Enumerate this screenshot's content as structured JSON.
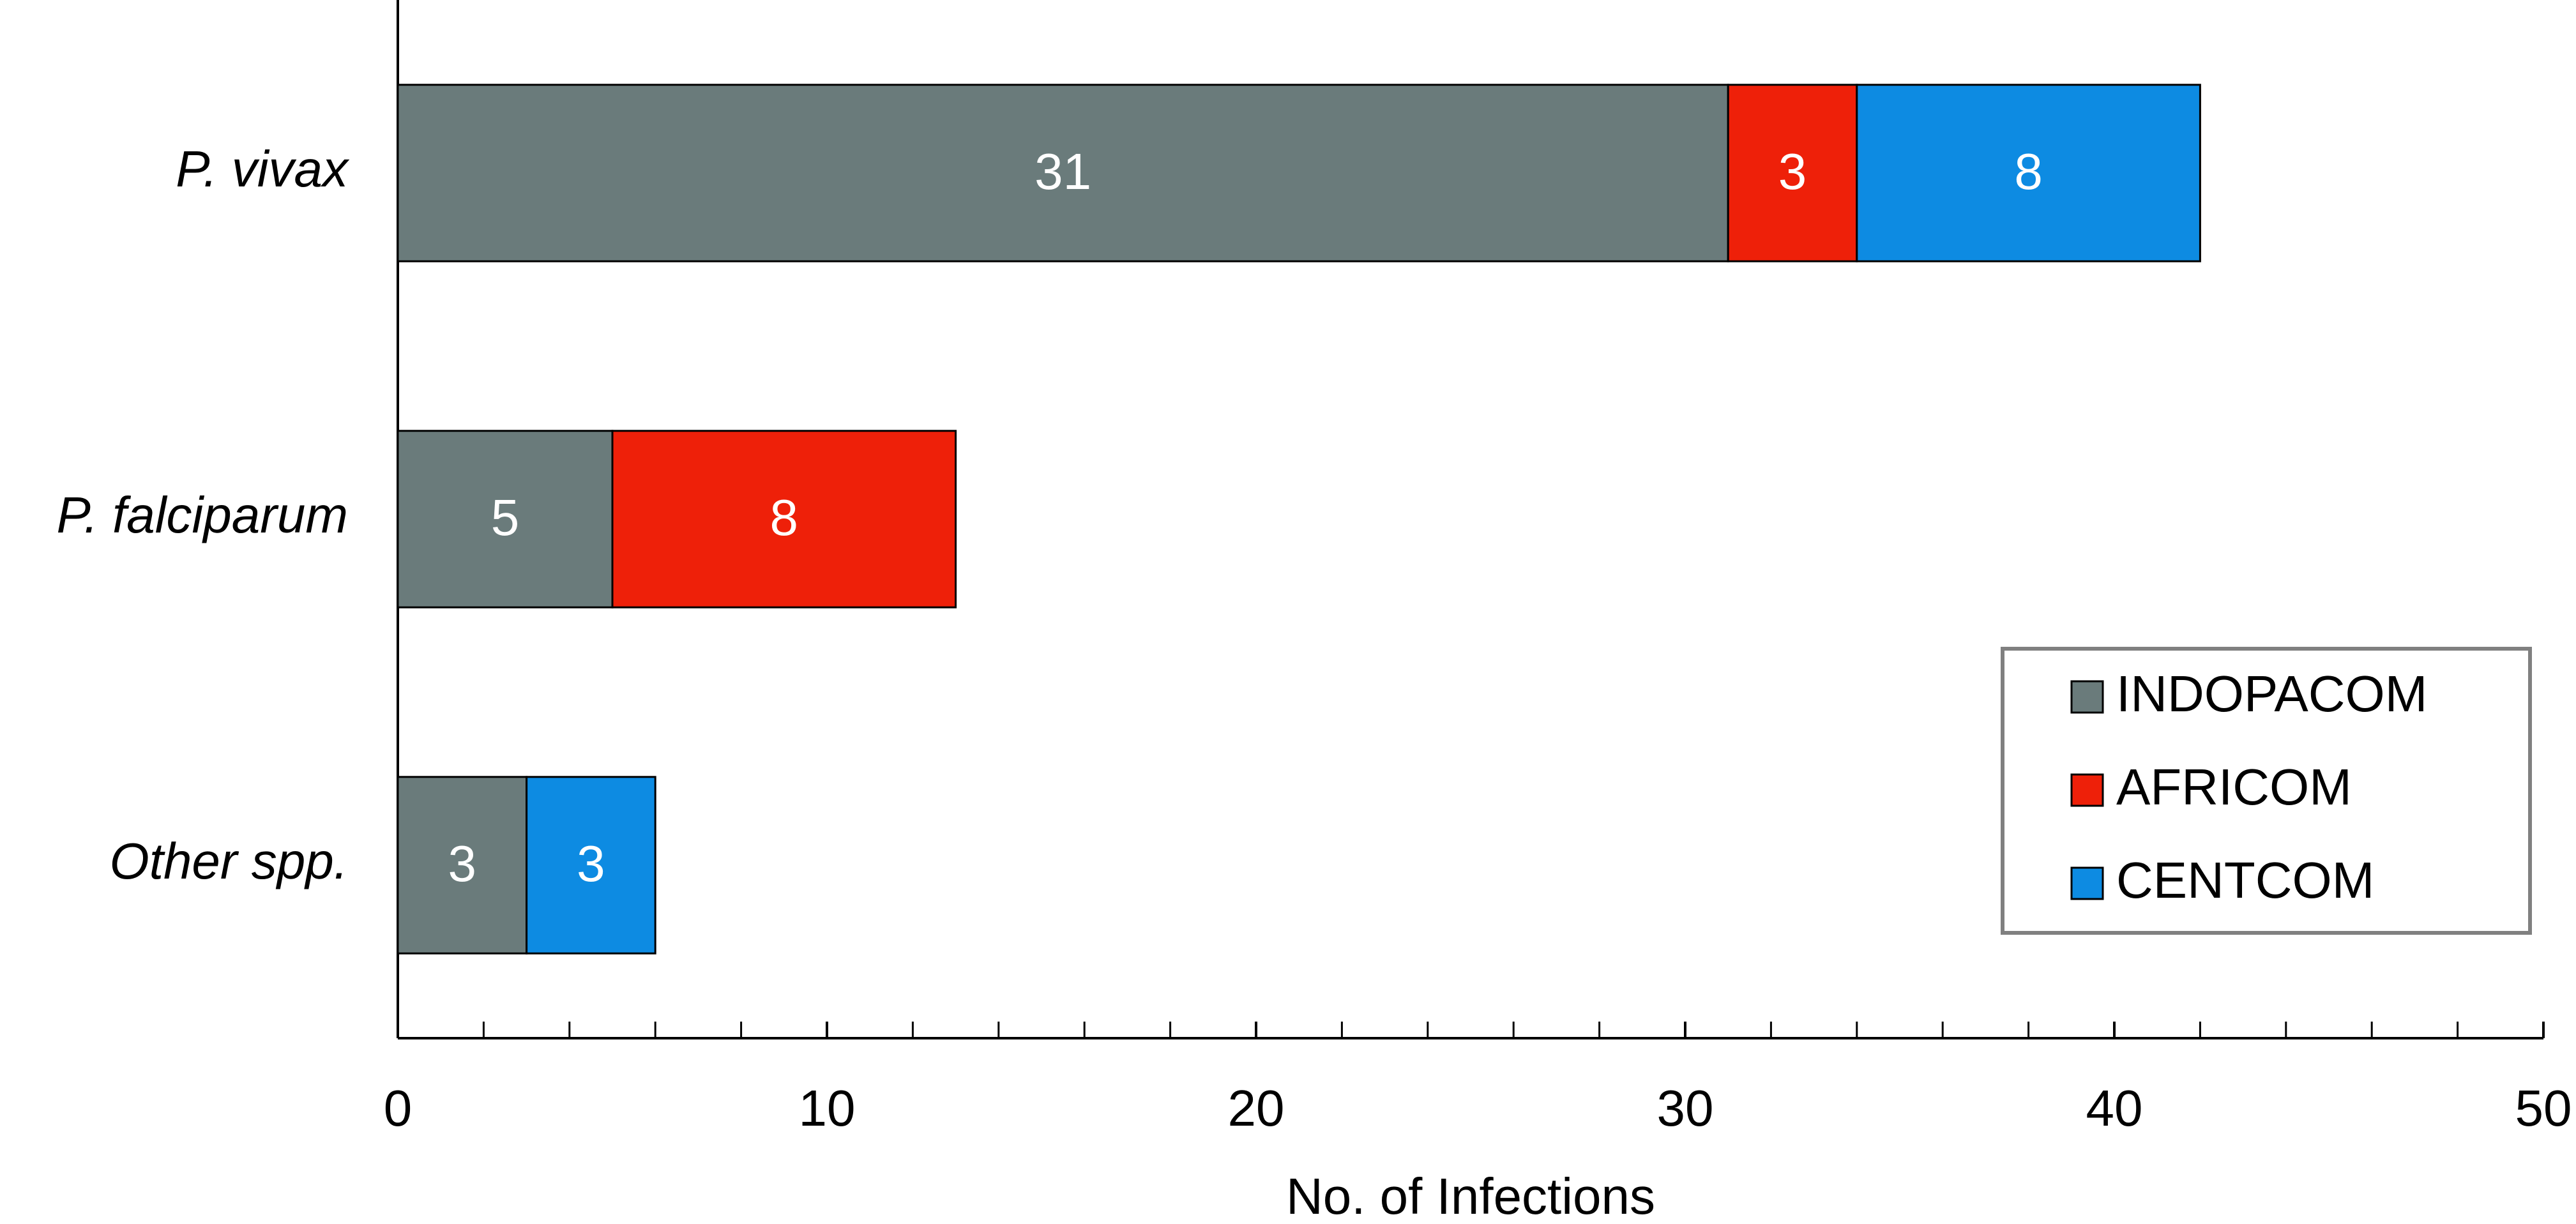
{
  "chart_data": {
    "type": "stacked-barh",
    "xlabel": "No. of Infections",
    "categories": [
      "P. vivax",
      "P. falciparum",
      "Other spp."
    ],
    "series": [
      {
        "name": "INDOPACOM",
        "color": "#6a7b7b",
        "values": [
          31,
          5,
          3
        ]
      },
      {
        "name": "AFRICOM",
        "color": "#ee2009",
        "values": [
          3,
          8,
          null
        ]
      },
      {
        "name": "CENTCOM",
        "color": "#0d8be2",
        "values": [
          8,
          null,
          3
        ]
      }
    ],
    "xlim": [
      0,
      50
    ],
    "xticks": [
      0,
      10,
      20,
      30,
      40,
      50
    ],
    "legend": "lower right"
  }
}
